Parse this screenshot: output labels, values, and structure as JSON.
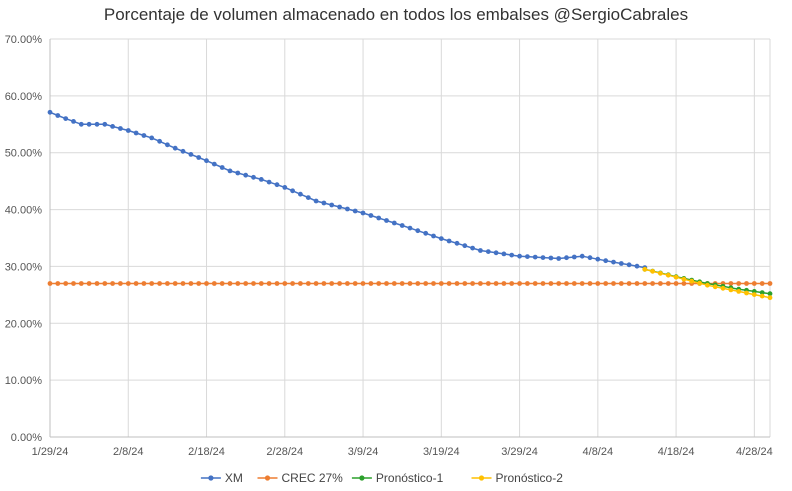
{
  "chart_data": {
    "type": "line",
    "title": "Porcentaje de volumen almacenado en todos los embalses @SergioCabrales",
    "xlabel": "",
    "ylabel": "",
    "x_start": "1/29/24",
    "x_end": "4/30/24",
    "ylim": [
      0,
      70
    ],
    "y_tick_labels": [
      "0.00%",
      "10.00%",
      "20.00%",
      "30.00%",
      "40.00%",
      "50.00%",
      "60.00%",
      "70.00%"
    ],
    "x_tick_labels": [
      "1/29/24",
      "2/8/24",
      "2/18/24",
      "2/28/24",
      "3/9/24",
      "3/19/24",
      "3/29/24",
      "4/8/24",
      "4/18/24",
      "4/28/24"
    ],
    "grid": true,
    "legend_position": "bottom",
    "series": [
      {
        "name": "XM",
        "color": "#4472C4",
        "x_range": [
          "1/29/24",
          "4/14/24"
        ],
        "knots": [
          [
            "1/29/24",
            57.1
          ],
          [
            "1/31/24",
            56.0
          ],
          [
            "2/2/24",
            55.0
          ],
          [
            "2/5/24",
            55.0
          ],
          [
            "2/8/24",
            53.9
          ],
          [
            "2/11/24",
            52.6
          ],
          [
            "2/14/24",
            50.8
          ],
          [
            "2/18/24",
            48.6
          ],
          [
            "2/21/24",
            46.8
          ],
          [
            "2/25/24",
            45.3
          ],
          [
            "2/28/24",
            43.9
          ],
          [
            "3/3/24",
            41.5
          ],
          [
            "3/9/24",
            39.4
          ],
          [
            "3/14/24",
            37.2
          ],
          [
            "3/19/24",
            34.9
          ],
          [
            "3/24/24",
            32.8
          ],
          [
            "3/29/24",
            31.8
          ],
          [
            "4/3/24",
            31.4
          ],
          [
            "4/6/24",
            31.8
          ],
          [
            "4/9/24",
            31.0
          ],
          [
            "4/14/24",
            29.8
          ]
        ]
      },
      {
        "name": "CREC 27%",
        "color": "#ED7D31",
        "x_range": [
          "1/29/24",
          "4/30/24"
        ],
        "knots": [
          [
            "1/29/24",
            27.0
          ],
          [
            "4/30/24",
            27.0
          ]
        ]
      },
      {
        "name": "Pronóstico-1",
        "color": "#2CA02C",
        "x_range": [
          "4/14/24",
          "4/30/24"
        ],
        "knots": [
          [
            "4/14/24",
            29.5
          ],
          [
            "4/18/24",
            28.2
          ],
          [
            "4/22/24",
            27.0
          ],
          [
            "4/26/24",
            26.0
          ],
          [
            "4/30/24",
            25.2
          ]
        ]
      },
      {
        "name": "Pronóstico-2",
        "color": "#FFC000",
        "x_range": [
          "4/14/24",
          "4/30/24"
        ],
        "knots": [
          [
            "4/14/24",
            29.5
          ],
          [
            "4/18/24",
            28.1
          ],
          [
            "4/22/24",
            26.7
          ],
          [
            "4/26/24",
            25.6
          ],
          [
            "4/30/24",
            24.5
          ]
        ]
      }
    ]
  }
}
